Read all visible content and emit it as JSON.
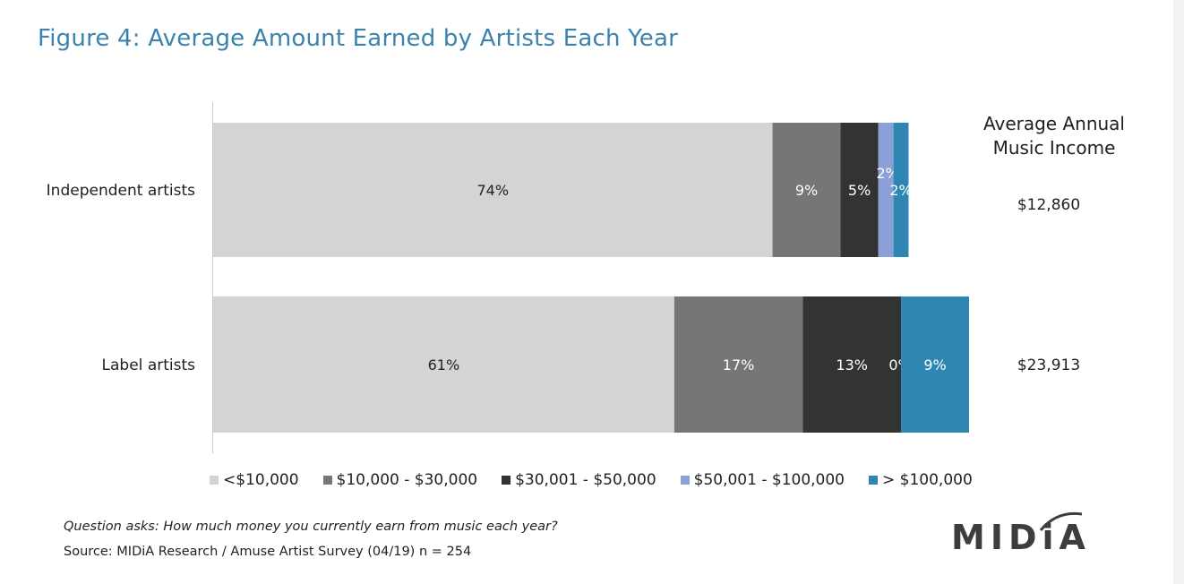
{
  "title": "Figure 4: Average Amount Earned by Artists Each Year",
  "chart_data": {
    "type": "bar",
    "orientation": "horizontal",
    "stacked": true,
    "categories": [
      "Independent artists",
      "Label artists"
    ],
    "series": [
      {
        "name": "<$10,000",
        "color": "#d4d4d4",
        "label_color": "#222222",
        "values": [
          74,
          61
        ],
        "labels": [
          "74%",
          "61%"
        ]
      },
      {
        "name": "$10,000 - $30,000",
        "color": "#767676",
        "label_color": "#ffffff",
        "values": [
          9,
          17
        ],
        "labels": [
          "9%",
          "17%"
        ]
      },
      {
        "name": "$30,001 - $50,000",
        "color": "#333333",
        "label_color": "#ffffff",
        "values": [
          5,
          13
        ],
        "labels": [
          "5%",
          "13%"
        ]
      },
      {
        "name": "$50,001 - $100,000",
        "color": "#8aa0d6",
        "label_color": "#ffffff",
        "values": [
          2,
          0
        ],
        "labels": [
          "2%",
          "0%"
        ]
      },
      {
        "name": "> $100,000",
        "color": "#2f86b3",
        "label_color": "#ffffff",
        "values": [
          2,
          9
        ],
        "labels": [
          "2%",
          "9%"
        ]
      }
    ],
    "xlim": [
      0,
      100
    ],
    "grid": false,
    "legend_position": "bottom"
  },
  "income": {
    "header": [
      "Average Annual",
      "Music Income"
    ],
    "values": [
      "$12,860",
      "$23,913"
    ]
  },
  "footer": {
    "question": "Question asks: How much money you currently earn from music each year?",
    "source": "Source: MIDiA Research / Amuse Artist Survey (04/19) n = 254"
  },
  "logo": {
    "text": "MIDiA",
    "color": "#3d3d3d"
  }
}
